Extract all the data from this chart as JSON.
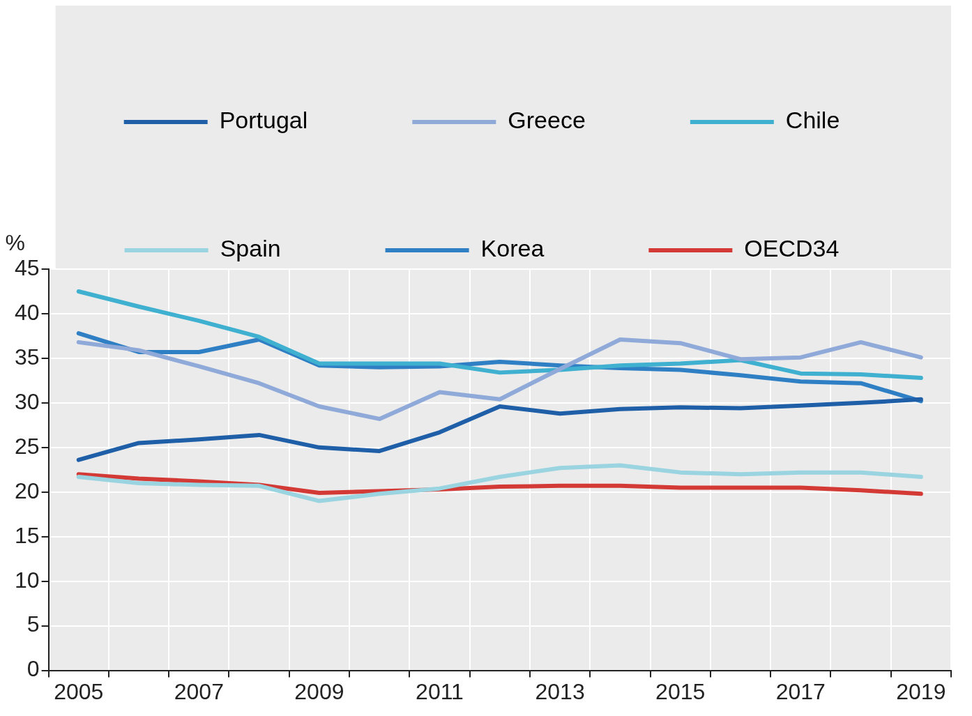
{
  "chart_data": {
    "type": "line",
    "ylabel": "%",
    "categories": [
      "2005",
      null,
      "2007",
      null,
      "2009",
      null,
      "2011",
      null,
      "2013",
      null,
      "2015",
      null,
      "2017",
      null,
      "2019"
    ],
    "ylim": [
      0,
      45
    ],
    "yticks": [
      0,
      5,
      10,
      15,
      20,
      25,
      30,
      35,
      40,
      45
    ],
    "grid": true,
    "legend": "top",
    "marker": "none",
    "line_style": "solid",
    "series": [
      {
        "name": "Portugal",
        "color": "#1f5fa8",
        "values": [
          23.6,
          25.5,
          25.9,
          26.4,
          25.0,
          24.6,
          26.7,
          29.6,
          28.8,
          29.3,
          29.5,
          29.4,
          29.7,
          30.0,
          30.4
        ]
      },
      {
        "name": "Greece",
        "color": "#8fa9d8",
        "values": [
          36.8,
          35.9,
          34.1,
          32.2,
          29.6,
          28.2,
          31.2,
          30.4,
          33.8,
          37.1,
          36.7,
          34.9,
          35.1,
          36.8,
          35.1
        ]
      },
      {
        "name": "Chile",
        "color": "#3fb0cf",
        "values": [
          42.5,
          40.8,
          39.2,
          37.4,
          34.4,
          34.4,
          34.4,
          33.4,
          33.7,
          34.2,
          34.4,
          34.8,
          33.3,
          33.2,
          32.8
        ]
      },
      {
        "name": "Spain",
        "color": "#9ad4e0",
        "values": [
          21.7,
          21.0,
          20.8,
          20.7,
          19.0,
          19.8,
          20.4,
          21.7,
          22.7,
          23.0,
          22.2,
          22.0,
          22.2,
          22.2,
          21.7
        ]
      },
      {
        "name": "Korea",
        "color": "#2f7fc4",
        "values": [
          37.8,
          35.7,
          35.7,
          37.1,
          34.2,
          34.0,
          34.1,
          34.6,
          34.2,
          33.9,
          33.7,
          33.1,
          32.4,
          32.2,
          30.2
        ]
      },
      {
        "name": "OECD34",
        "color": "#d43a35",
        "values": [
          22.0,
          21.5,
          21.2,
          20.8,
          19.9,
          20.1,
          20.3,
          20.6,
          20.7,
          20.7,
          20.5,
          20.5,
          20.5,
          20.2,
          19.8
        ]
      }
    ]
  }
}
